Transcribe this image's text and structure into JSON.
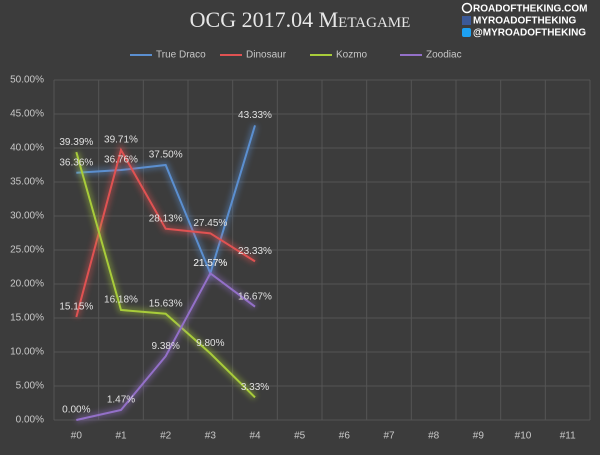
{
  "chart_data": {
    "type": "line",
    "title": "OCG 2017.04 Metagame",
    "watermark": [
      "ROADOFTHEKING.COM",
      "MYROADOFTHEKING",
      "@MYROADOFTHEKING"
    ],
    "categories": [
      "#0",
      "#1",
      "#2",
      "#3",
      "#4",
      "#5",
      "#6",
      "#7",
      "#8",
      "#9",
      "#10",
      "#11"
    ],
    "series": [
      {
        "name": "True Draco",
        "color": "#5b8fd0",
        "values": [
          36.36,
          36.76,
          37.5,
          21.57,
          43.33,
          null,
          null,
          null,
          null,
          null,
          null,
          null
        ],
        "value_labels": [
          "36.36%",
          "36.76%",
          "37.50%",
          "21.57%",
          "43.33%",
          null,
          null,
          null,
          null,
          null,
          null,
          null
        ]
      },
      {
        "name": "Dinosaur",
        "color": "#e05252",
        "values": [
          15.15,
          39.71,
          28.13,
          27.45,
          23.33,
          null,
          null,
          null,
          null,
          null,
          null,
          null
        ],
        "value_labels": [
          "15.15%",
          "39.71%",
          "28.13%",
          "27.45%",
          "23.33%",
          null,
          null,
          null,
          null,
          null,
          null,
          null
        ]
      },
      {
        "name": "Kozmo",
        "color": "#a8cc3a",
        "values": [
          39.39,
          16.18,
          15.63,
          9.8,
          3.33,
          null,
          null,
          null,
          null,
          null,
          null,
          null
        ],
        "value_labels": [
          "39.39%",
          "16.18%",
          "15.63%",
          "9.80%",
          "3.33%",
          null,
          null,
          null,
          null,
          null,
          null,
          null
        ]
      },
      {
        "name": "Zoodiac",
        "color": "#9370c8",
        "values": [
          0,
          1.47,
          9.38,
          21.57,
          16.67,
          null,
          null,
          null,
          null,
          null,
          null,
          null
        ],
        "value_labels": [
          "0.00%",
          "1.47%",
          "9.38%",
          "21.57%",
          "16.67%",
          null,
          null,
          null,
          null,
          null,
          null,
          null
        ]
      }
    ],
    "ylim": [
      0,
      50
    ],
    "yticks": [
      {
        "value": 0,
        "label": "0.00%"
      },
      {
        "value": 5,
        "label": "5.00%"
      },
      {
        "value": 10,
        "label": "10.00%"
      },
      {
        "value": 15,
        "label": "15.00%"
      },
      {
        "value": 20,
        "label": "20.00%"
      },
      {
        "value": 25,
        "label": "25.00%"
      },
      {
        "value": 30,
        "label": "30.00%"
      },
      {
        "value": 35,
        "label": "35.00%"
      },
      {
        "value": 40,
        "label": "40.00%"
      },
      {
        "value": 45,
        "label": "45.00%"
      },
      {
        "value": 50,
        "label": "50.00%"
      }
    ],
    "grid": true,
    "legend": "top"
  }
}
